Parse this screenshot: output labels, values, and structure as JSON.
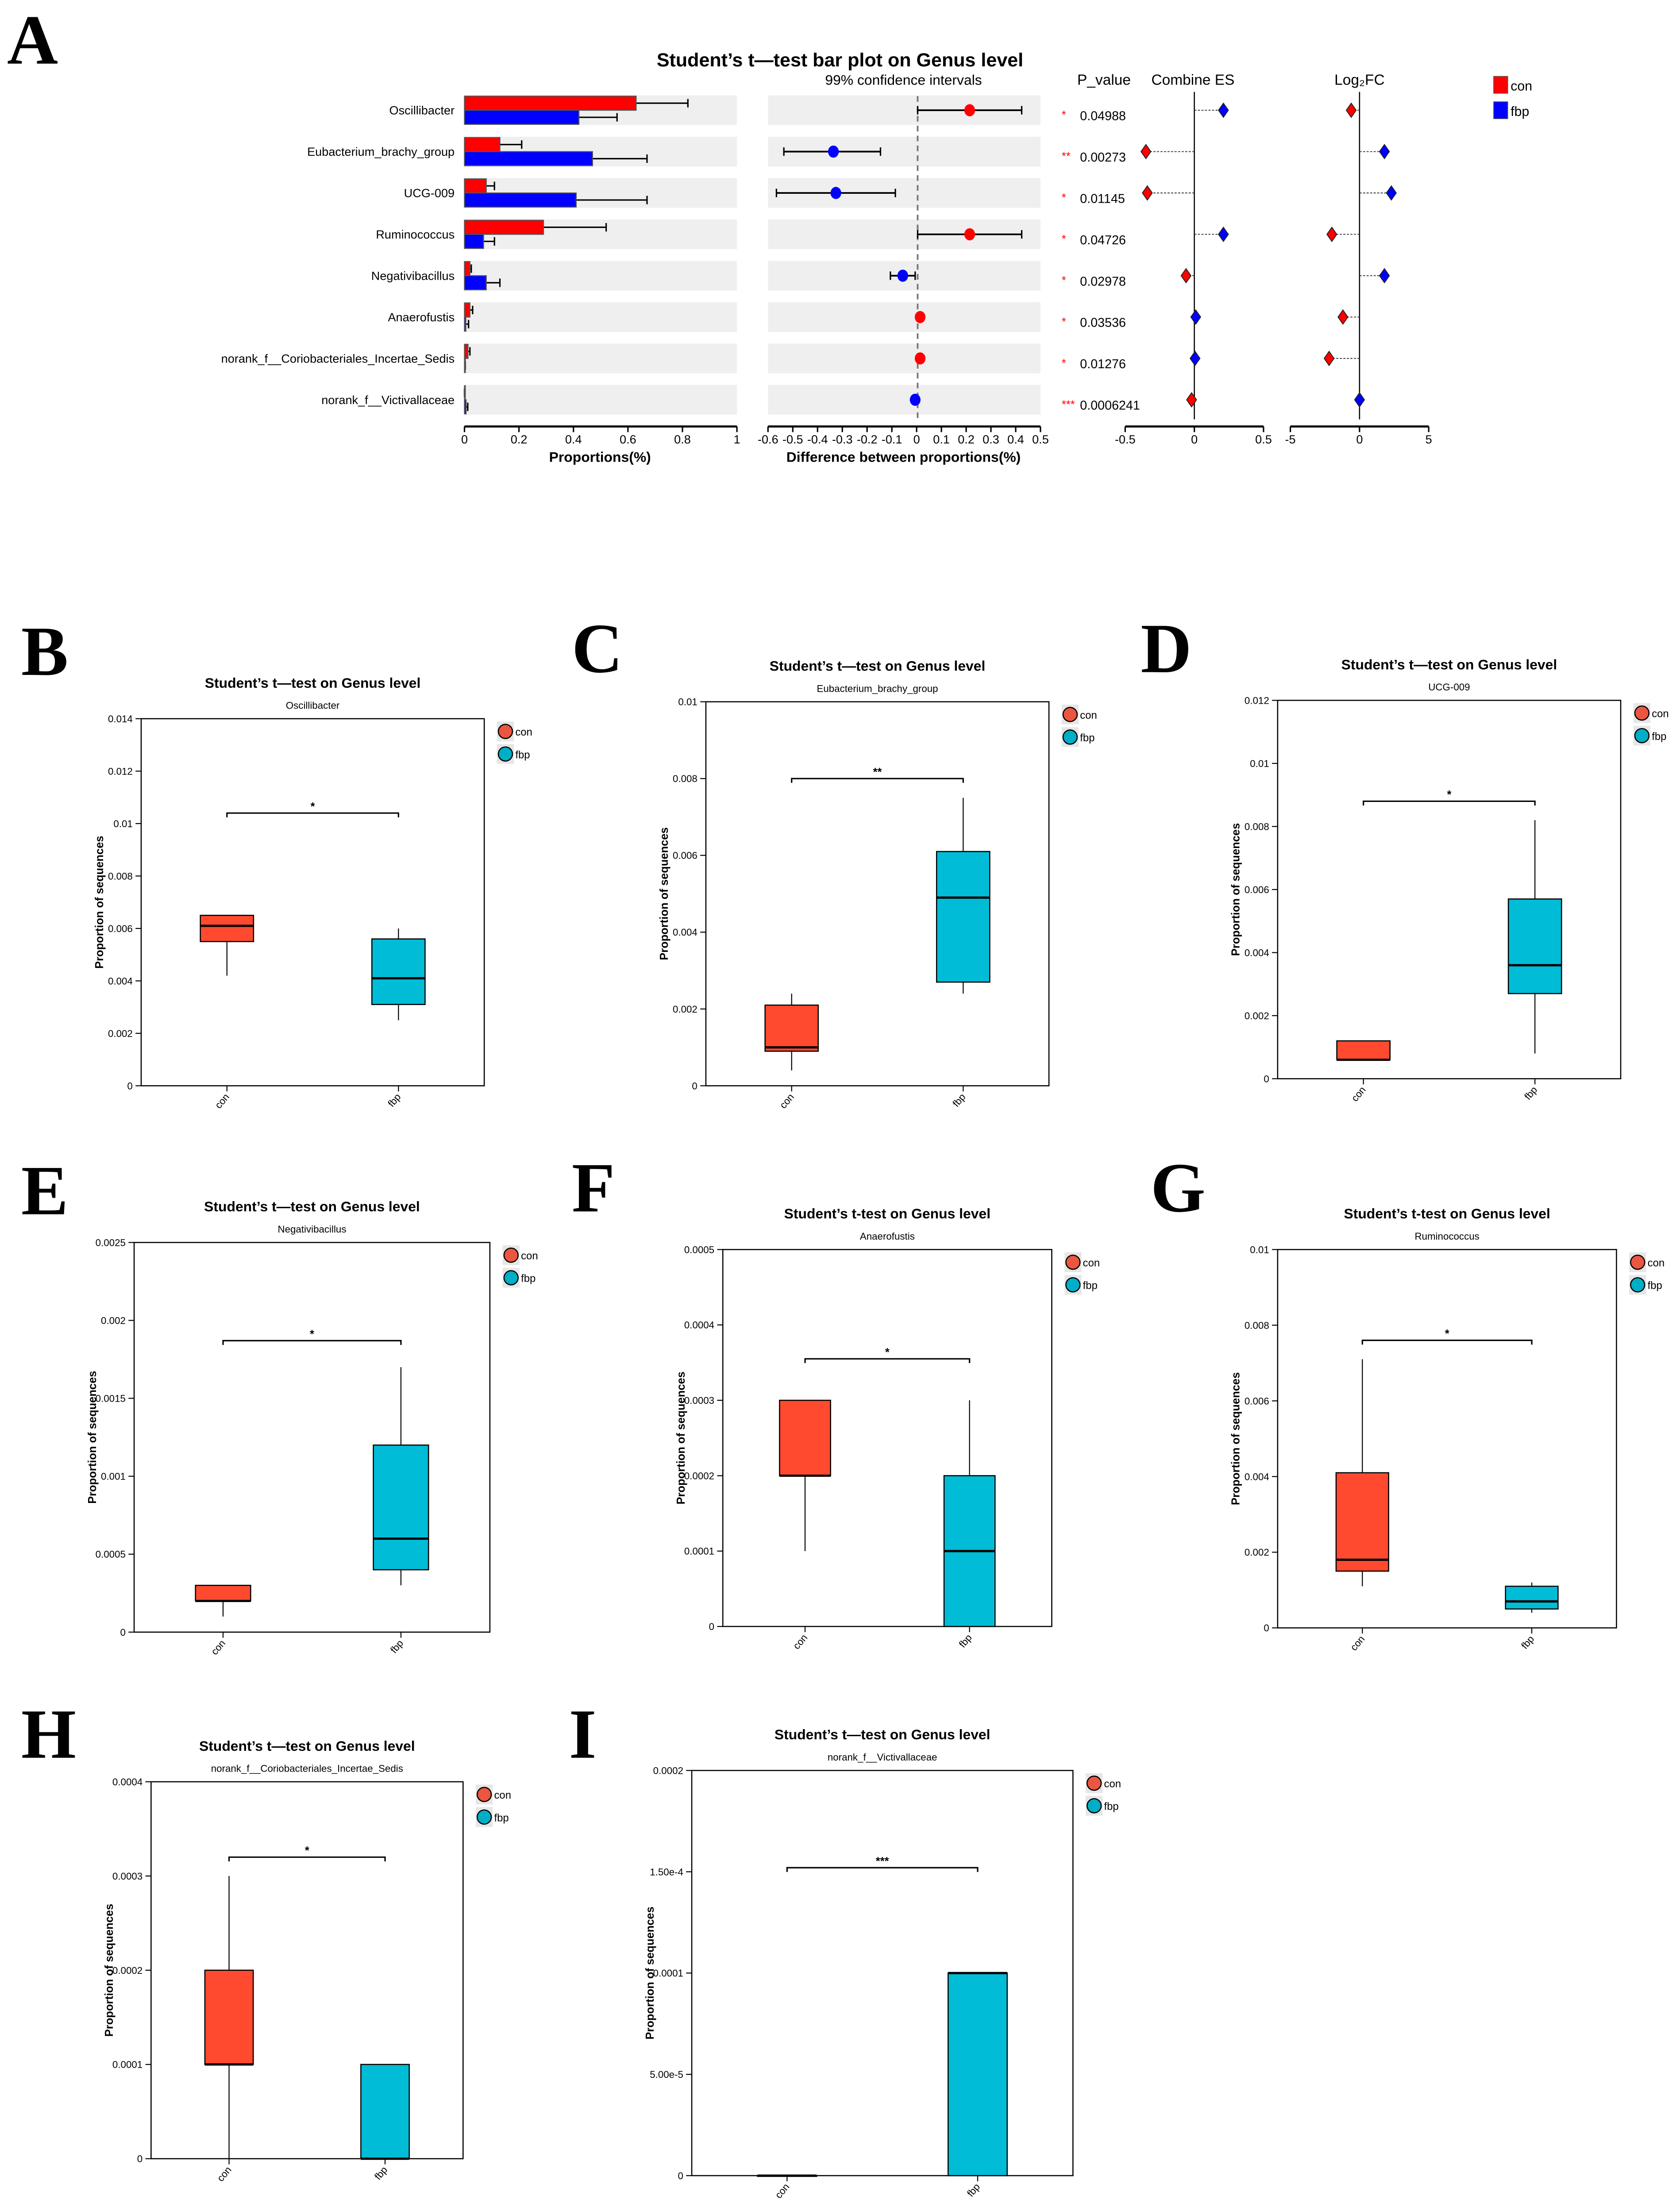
{
  "panel_labels": [
    "A",
    "B",
    "C",
    "D",
    "E",
    "F",
    "G",
    "H",
    "I"
  ],
  "colors": {
    "con_bar": "#ff0000",
    "fbp_bar": "#0000ff",
    "con_box": "#ff4a2f",
    "fbp_box": "#00bcd6",
    "band": "#efefef",
    "star": "#ff0000"
  },
  "chart_data": [
    {
      "type": "bar",
      "id": "A",
      "title": "Student’s t—test bar plot on Genus level",
      "legend": [
        "con",
        "fbp"
      ],
      "legend_position": "top-right",
      "genera": [
        "Oscillibacter",
        "Eubacterium_brachy_group",
        "UCG-009",
        "Ruminococcus",
        "Negativibacillus",
        "Anaerofustis",
        "norank_f__Coriobacteriales_Incertae_Sedis",
        "norank_f__Victivallaceae"
      ],
      "proportions": {
        "xlabel": "Proportions(%)",
        "xlim": [
          0,
          1
        ],
        "ticks": [
          "0",
          "0.2",
          "0.4",
          "0.6",
          "0.8",
          "1"
        ],
        "con": [
          0.63,
          0.13,
          0.08,
          0.29,
          0.02,
          0.02,
          0.013,
          0.0
        ],
        "con_err": [
          0.82,
          0.21,
          0.11,
          0.52,
          0.025,
          0.03,
          0.02,
          0.0
        ],
        "fbp": [
          0.42,
          0.47,
          0.41,
          0.07,
          0.08,
          0.005,
          0.002,
          0.006
        ],
        "fbp_err": [
          0.56,
          0.67,
          0.67,
          0.11,
          0.13,
          0.015,
          0.003,
          0.012
        ]
      },
      "ci": {
        "title": "99% confidence intervals",
        "xlabel": "Difference between proportions(%)",
        "xlim": [
          -0.6,
          0.5
        ],
        "ticks": [
          "-0.6",
          "-0.5",
          "-0.4",
          "-0.3",
          "-0.2",
          "-0.1",
          "0",
          "0.1",
          "0.2",
          "0.3",
          "0.4",
          "0.5"
        ],
        "diff": [
          0.21,
          -0.34,
          -0.33,
          0.21,
          -0.06,
          0.01,
          0.01,
          -0.01
        ],
        "low": [
          0.0,
          -0.54,
          -0.57,
          0.0,
          -0.11,
          0.01,
          0.01,
          -0.01
        ],
        "high": [
          0.42,
          -0.15,
          -0.09,
          0.42,
          -0.01,
          0.01,
          0.01,
          -0.01
        ],
        "group": [
          "con",
          "fbp",
          "fbp",
          "con",
          "fbp",
          "con",
          "con",
          "fbp"
        ]
      },
      "p_value": {
        "title": "P_value",
        "stars": [
          "*",
          "**",
          "*",
          "*",
          "*",
          "*",
          "*",
          "***"
        ],
        "values": [
          "0.04988",
          "0.00273",
          "0.01145",
          "0.04726",
          "0.02978",
          "0.03536",
          "0.01276",
          "0.0006241"
        ]
      },
      "combine_es": {
        "title": "Combine ES",
        "xlim": [
          -0.5,
          0.5
        ],
        "ticks": [
          "-0.5",
          "0",
          "0.5"
        ],
        "values": [
          0.21,
          -0.35,
          -0.34,
          0.21,
          -0.06,
          0.01,
          0.005,
          -0.02
        ],
        "group": [
          "fbp",
          "con",
          "con",
          "fbp",
          "con",
          "fbp",
          "fbp",
          "con"
        ]
      },
      "log2fc": {
        "title": "Log₂FC",
        "xlim": [
          -5,
          5
        ],
        "ticks": [
          "-5",
          "0",
          "5"
        ],
        "values": [
          -0.6,
          1.8,
          2.3,
          -2.0,
          1.8,
          -1.2,
          -2.2,
          0.0
        ],
        "group": [
          "con",
          "fbp",
          "fbp",
          "con",
          "fbp",
          "con",
          "con",
          "fbp"
        ]
      }
    },
    {
      "type": "box",
      "id": "B",
      "title": "Student’s t—test on Genus level",
      "subtitle": "Oscillibacter",
      "ylabel": "Proportion of sequences",
      "ylim": [
        0,
        0.014
      ],
      "yticks": [
        0,
        0.002,
        0.004,
        0.006,
        0.008,
        0.01,
        0.012,
        0.014
      ],
      "ytick_labels": [
        "0",
        "0.002",
        "0.004",
        "0.006",
        "0.008",
        "0.01",
        "0.012",
        "0.014"
      ],
      "categories": [
        "con",
        "fbp"
      ],
      "legend": [
        "con",
        "fbp"
      ],
      "boxes": [
        {
          "low": 0.0042,
          "q1": 0.0055,
          "median": 0.0061,
          "q3": 0.0065,
          "high": 0.0065
        },
        {
          "low": 0.0025,
          "q1": 0.0031,
          "median": 0.0041,
          "q3": 0.0056,
          "high": 0.006
        }
      ],
      "significance": "*",
      "bracket": 0.0104
    },
    {
      "type": "box",
      "id": "C",
      "title": "Student’s t—test on Genus level",
      "subtitle": "Eubacterium_brachy_group",
      "ylabel": "Proportion of sequences",
      "ylim": [
        0,
        0.01
      ],
      "yticks": [
        0,
        0.002,
        0.004,
        0.006,
        0.008,
        0.01
      ],
      "ytick_labels": [
        "0",
        "0.002",
        "0.004",
        "0.006",
        "0.008",
        "0.01"
      ],
      "categories": [
        "con",
        "fbp"
      ],
      "legend": [
        "con",
        "fbp"
      ],
      "boxes": [
        {
          "low": 0.0004,
          "q1": 0.0009,
          "median": 0.001,
          "q3": 0.0021,
          "high": 0.0024
        },
        {
          "low": 0.0024,
          "q1": 0.0027,
          "median": 0.0049,
          "q3": 0.0061,
          "high": 0.0075
        }
      ],
      "significance": "**",
      "bracket": 0.008
    },
    {
      "type": "box",
      "id": "D",
      "title": "Student’s t—test on Genus level",
      "subtitle": "UCG-009",
      "ylabel": "Proportion of sequences",
      "ylim": [
        0,
        0.012
      ],
      "yticks": [
        0,
        0.002,
        0.004,
        0.006,
        0.008,
        0.01,
        0.012
      ],
      "ytick_labels": [
        "0",
        "0.002",
        "0.004",
        "0.006",
        "0.008",
        "0.01",
        "0.012"
      ],
      "categories": [
        "con",
        "fbp"
      ],
      "legend": [
        "con",
        "fbp"
      ],
      "boxes": [
        {
          "low": 0.0006,
          "q1": 0.0006,
          "median": 0.0006,
          "q3": 0.0012,
          "high": 0.0012
        },
        {
          "low": 0.0008,
          "q1": 0.0027,
          "median": 0.0036,
          "q3": 0.0057,
          "high": 0.0082
        }
      ],
      "significance": "*",
      "bracket": 0.0088
    },
    {
      "type": "box",
      "id": "E",
      "title": "Student’s t—test on Genus level",
      "subtitle": "Negativibacillus",
      "ylabel": "Proportion of sequences",
      "ylim": [
        0,
        0.0025
      ],
      "yticks": [
        0,
        0.0005,
        0.001,
        0.0015,
        0.002,
        0.0025
      ],
      "ytick_labels": [
        "0",
        "0.0005",
        "0.001",
        "0.0015",
        "0.002",
        "0.0025"
      ],
      "categories": [
        "con",
        "fbp"
      ],
      "legend": [
        "con",
        "fbp"
      ],
      "boxes": [
        {
          "low": 0.0001,
          "q1": 0.0002,
          "median": 0.0002,
          "q3": 0.0003,
          "high": 0.0003
        },
        {
          "low": 0.0003,
          "q1": 0.0004,
          "median": 0.0006,
          "q3": 0.0012,
          "high": 0.0017
        }
      ],
      "significance": "*",
      "bracket": 0.00187
    },
    {
      "type": "box",
      "id": "F",
      "title": "Student’s t-test on Genus level",
      "subtitle": "Anaerofustis",
      "ylabel": "Proportion of sequences",
      "ylim": [
        0,
        0.0005
      ],
      "yticks": [
        0,
        0.0001,
        0.0002,
        0.0003,
        0.0004,
        0.0005
      ],
      "ytick_labels": [
        "0",
        "0.0001",
        "0.0002",
        "0.0003",
        "0.0004",
        "0.0005"
      ],
      "categories": [
        "con",
        "fbp"
      ],
      "legend": [
        "con",
        "fbp"
      ],
      "boxes": [
        {
          "low": 0.0001,
          "q1": 0.0002,
          "median": 0.0002,
          "q3": 0.0003,
          "high": 0.0003
        },
        {
          "low": 0,
          "q1": 0,
          "median": 0.0001,
          "q3": 0.0002,
          "high": 0.0003
        }
      ],
      "significance": "*",
      "bracket": 0.000355
    },
    {
      "type": "box",
      "id": "G",
      "title": "Student’s t-test on Genus level",
      "subtitle": "Ruminococcus",
      "ylabel": "Proportion of sequences",
      "ylim": [
        0,
        0.01
      ],
      "yticks": [
        0,
        0.002,
        0.004,
        0.006,
        0.008,
        0.01
      ],
      "ytick_labels": [
        "0",
        "0.002",
        "0.004",
        "0.006",
        "0.008",
        "0.01"
      ],
      "categories": [
        "con",
        "fbp"
      ],
      "legend": [
        "con",
        "fbp"
      ],
      "boxes": [
        {
          "low": 0.0011,
          "q1": 0.0015,
          "median": 0.0018,
          "q3": 0.0041,
          "high": 0.0071
        },
        {
          "low": 0.0004,
          "q1": 0.0005,
          "median": 0.0007,
          "q3": 0.0011,
          "high": 0.0012
        }
      ],
      "significance": "*",
      "bracket": 0.0076
    },
    {
      "type": "box",
      "id": "H",
      "title": "Student’s t—test on Genus level",
      "subtitle": "norank_f__Coriobacteriales_Incertae_Sedis",
      "ylabel": "Proportion of sequences",
      "ylim": [
        0,
        0.0004
      ],
      "yticks": [
        0,
        0.0001,
        0.0002,
        0.0003,
        0.0004
      ],
      "ytick_labels": [
        "0",
        "0.0001",
        "0.0002",
        "0.0003",
        "0.0004"
      ],
      "categories": [
        "con",
        "fbp"
      ],
      "legend": [
        "con",
        "fbp"
      ],
      "boxes": [
        {
          "low": 0,
          "q1": 0.0001,
          "median": 0.0001,
          "q3": 0.0002,
          "high": 0.0003
        },
        {
          "low": 0,
          "q1": 0,
          "median": 0,
          "q3": 0.0001,
          "high": 0.0001
        }
      ],
      "significance": "*",
      "bracket": 0.00032
    },
    {
      "type": "box",
      "id": "I",
      "title": "Student’s t—test on Genus level",
      "subtitle": "norank_f__Victivallaceae",
      "ylabel": "Proportion of sequences",
      "ylim": [
        0,
        0.0002
      ],
      "yticks": [
        0,
        5e-05,
        0.0001,
        0.00015,
        0.0002
      ],
      "ytick_labels": [
        "0",
        "5.00e-5",
        "0.0001",
        "1.50e-4",
        "0.0002"
      ],
      "categories": [
        "con",
        "fbp"
      ],
      "legend": [
        "con",
        "fbp"
      ],
      "boxes": [
        {
          "low": 0,
          "q1": 0,
          "median": 0,
          "q3": 0,
          "high": 0
        },
        {
          "low": 0,
          "q1": 0,
          "median": 0.0001,
          "q3": 0.0001,
          "high": 0.0001
        }
      ],
      "significance": "***",
      "bracket": 0.000152
    }
  ]
}
